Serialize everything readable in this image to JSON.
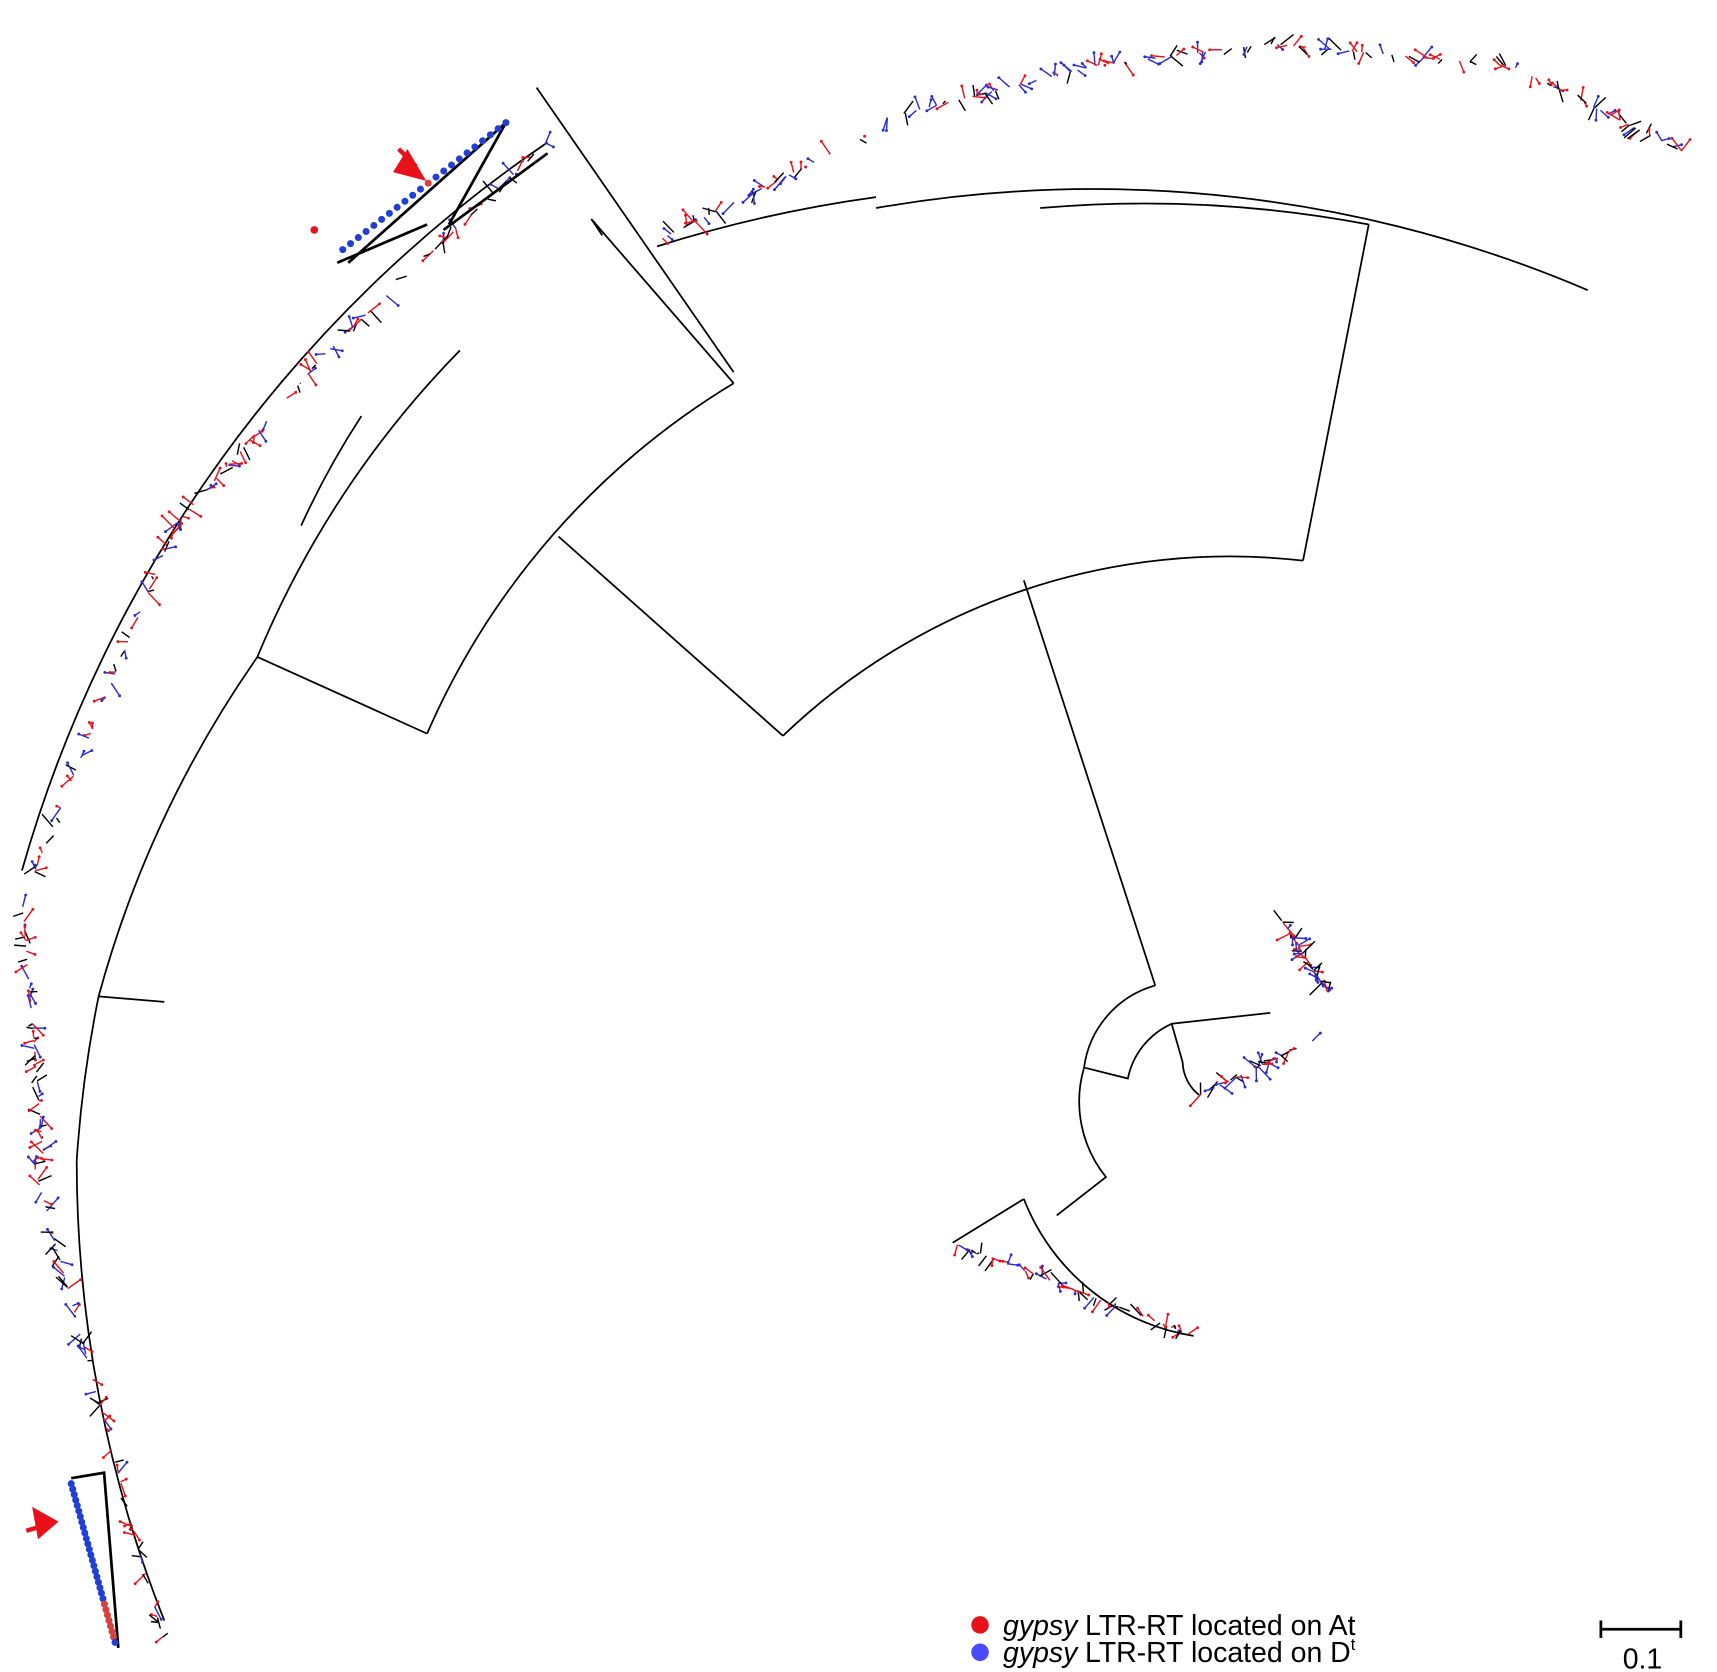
{
  "legend": [
    {
      "italic": "gypsy",
      "text": "LTR-RT located on At",
      "color": "#e8111a"
    },
    {
      "italic": "gypsy",
      "text": "LTR-RT located on D",
      "sup": "t",
      "color": "#4a4aff"
    }
  ],
  "scale_bar": "0.1"
}
